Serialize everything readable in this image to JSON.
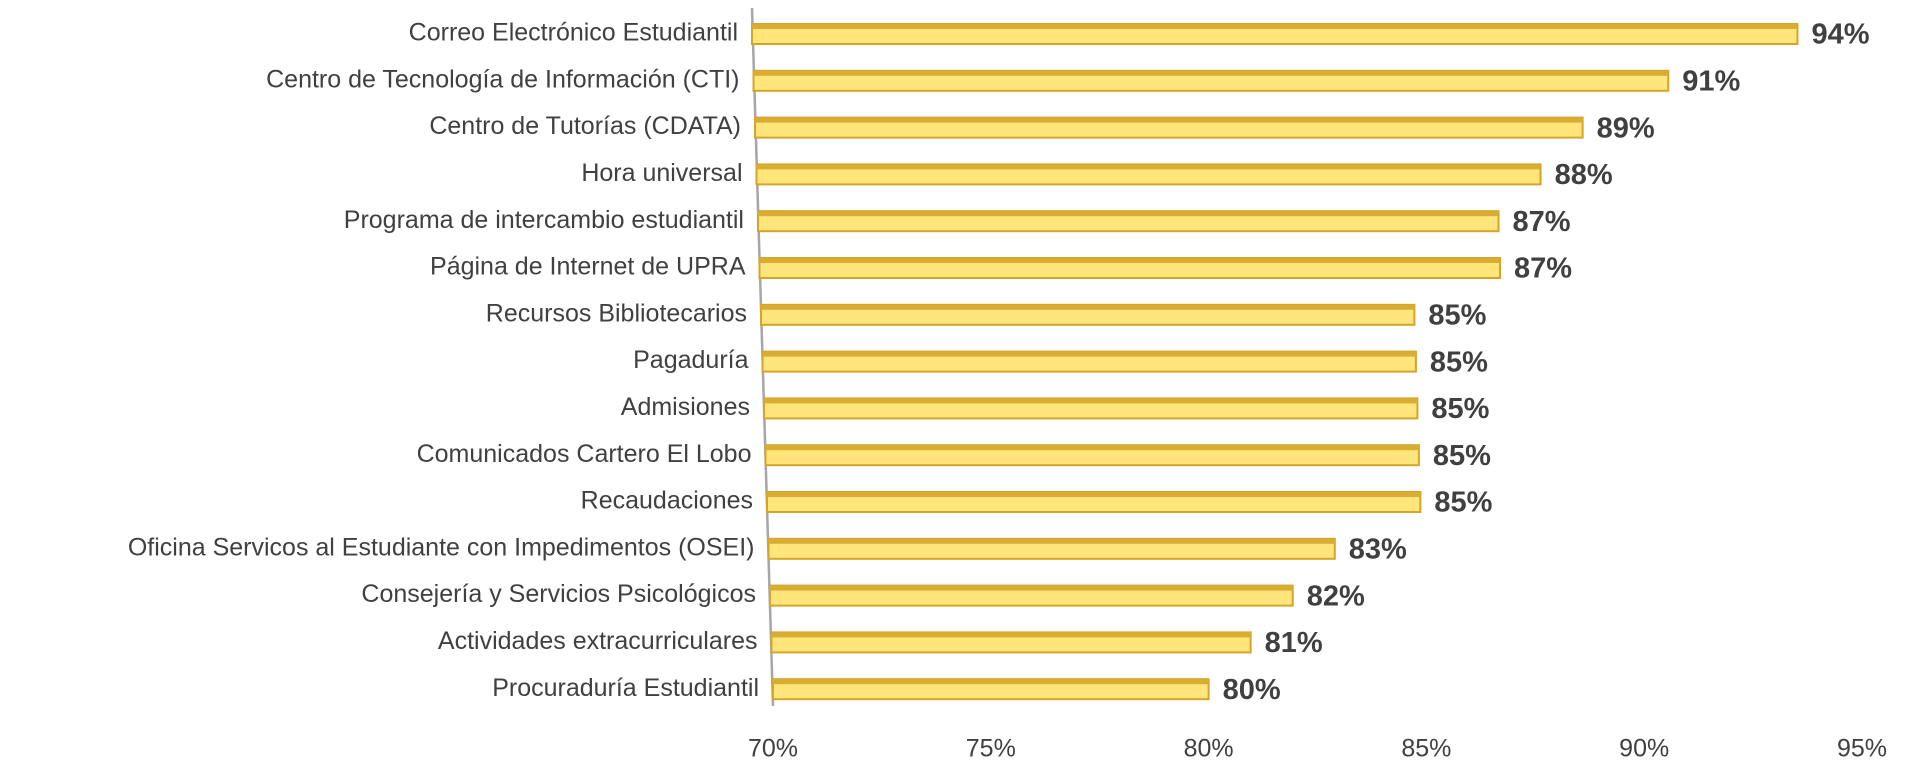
{
  "chart_data": {
    "type": "barh",
    "categories": [
      "Correo Electrónico Estudiantil",
      "Centro de Tecnología de Información (CTI)",
      "Centro de Tutorías (CDATA)",
      "Hora universal",
      "Programa de intercambio estudiantil",
      "Página de Internet de UPRA",
      "Recursos Bibliotecarios",
      "Pagaduría",
      "Admisiones",
      "Comunicados Cartero El Lobo",
      "Recaudaciones",
      "Oficina Servicos al Estudiante con Impedimentos (OSEI)",
      "Consejería y Servicios Psicológicos",
      "Actividades extracurriculares",
      "Procuraduría Estudiantil"
    ],
    "values": [
      94,
      91,
      89,
      88,
      87,
      87,
      85,
      85,
      85,
      85,
      85,
      83,
      82,
      81,
      80
    ],
    "value_labels": [
      "94%",
      "91%",
      "89%",
      "88%",
      "87%",
      "87%",
      "85%",
      "85%",
      "85%",
      "85%",
      "85%",
      "83%",
      "82%",
      "81%",
      "80%"
    ],
    "color": "#ffe57a",
    "xlim": [
      70,
      95
    ],
    "xticks": [
      {
        "value": 70,
        "label": "70%"
      },
      {
        "value": 75,
        "label": "75%"
      },
      {
        "value": 80,
        "label": "80%"
      },
      {
        "value": 85,
        "label": "85%"
      },
      {
        "value": 90,
        "label": "90%"
      },
      {
        "value": 95,
        "label": "95%"
      }
    ],
    "grid": false
  }
}
